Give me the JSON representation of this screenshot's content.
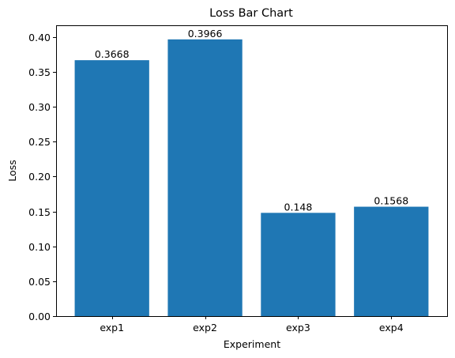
{
  "chart_data": {
    "type": "bar",
    "title": "Loss Bar Chart",
    "xlabel": "Experiment",
    "ylabel": "Loss",
    "categories": [
      "exp1",
      "exp2",
      "exp3",
      "exp4"
    ],
    "values": [
      0.3668,
      0.3966,
      0.148,
      0.1568
    ],
    "value_labels": [
      "0.3668",
      "0.3966",
      "0.148",
      "0.1568"
    ],
    "ylim": [
      0,
      0.4168
    ],
    "yticks": [
      0.0,
      0.05,
      0.1,
      0.15,
      0.2,
      0.25,
      0.3,
      0.35,
      0.4
    ],
    "ytick_labels": [
      "0.00",
      "0.05",
      "0.10",
      "0.15",
      "0.20",
      "0.25",
      "0.30",
      "0.35",
      "0.40"
    ],
    "grid": false,
    "bar_color": "#1f77b4"
  }
}
